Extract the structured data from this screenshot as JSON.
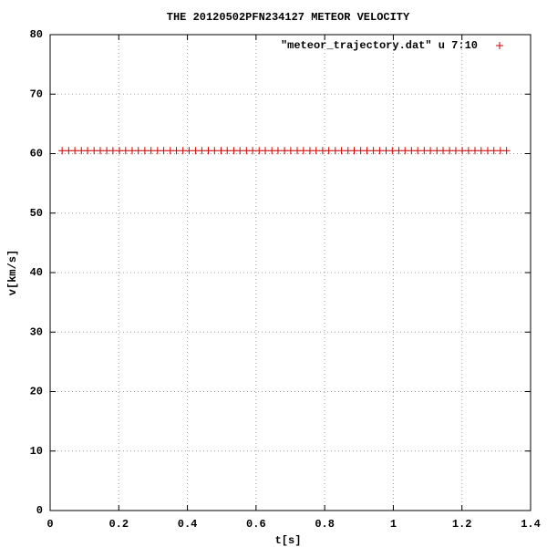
{
  "chart_data": {
    "type": "scatter",
    "title": "THE 20120502PFN234127 METEOR VELOCITY",
    "x_label": "t[s]",
    "y_label": "v[km/s]",
    "xlim": [
      0,
      1.4
    ],
    "ylim": [
      0,
      80
    ],
    "xticks": [
      0,
      0.2,
      0.4,
      0.6,
      0.8,
      1,
      1.2,
      1.4
    ],
    "yticks": [
      0,
      10,
      20,
      30,
      40,
      50,
      60,
      70,
      80
    ],
    "grid": true,
    "legend": "top-right",
    "series": [
      {
        "name": "\"meteor_trajectory.dat\" u 7:10",
        "color": "#d00000",
        "x": [
          0.035,
          0.054,
          0.072,
          0.091,
          0.109,
          0.128,
          0.146,
          0.165,
          0.183,
          0.202,
          0.22,
          0.239,
          0.257,
          0.276,
          0.294,
          0.313,
          0.331,
          0.35,
          0.368,
          0.387,
          0.405,
          0.424,
          0.442,
          0.461,
          0.479,
          0.498,
          0.516,
          0.535,
          0.553,
          0.572,
          0.59,
          0.609,
          0.627,
          0.646,
          0.664,
          0.683,
          0.701,
          0.72,
          0.738,
          0.757,
          0.775,
          0.794,
          0.812,
          0.831,
          0.849,
          0.868,
          0.886,
          0.905,
          0.923,
          0.942,
          0.96,
          0.979,
          0.997,
          1.016,
          1.034,
          1.053,
          1.071,
          1.09,
          1.108,
          1.127,
          1.145,
          1.164,
          1.182,
          1.201,
          1.219,
          1.238,
          1.256,
          1.275,
          1.293,
          1.312,
          1.33
        ],
        "values": [
          60.5,
          60.5,
          60.5,
          60.5,
          60.5,
          60.5,
          60.5,
          60.5,
          60.5,
          60.5,
          60.5,
          60.5,
          60.5,
          60.5,
          60.5,
          60.5,
          60.5,
          60.5,
          60.5,
          60.5,
          60.5,
          60.5,
          60.5,
          60.5,
          60.5,
          60.5,
          60.5,
          60.5,
          60.5,
          60.5,
          60.5,
          60.5,
          60.5,
          60.5,
          60.5,
          60.5,
          60.5,
          60.5,
          60.5,
          60.5,
          60.5,
          60.5,
          60.5,
          60.5,
          60.5,
          60.5,
          60.5,
          60.5,
          60.5,
          60.5,
          60.5,
          60.5,
          60.5,
          60.5,
          60.5,
          60.5,
          60.5,
          60.5,
          60.5,
          60.5,
          60.5,
          60.5,
          60.5,
          60.5,
          60.5,
          60.5,
          60.5,
          60.5,
          60.5,
          60.5,
          60.5
        ]
      }
    ]
  }
}
